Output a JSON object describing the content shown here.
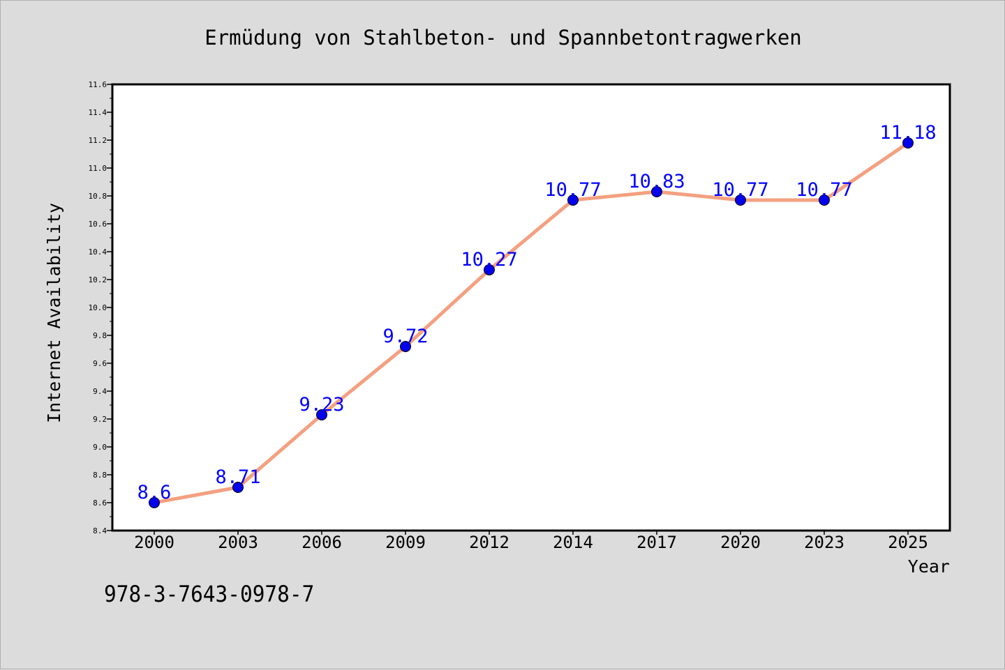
{
  "chart_data": {
    "type": "line",
    "title": "Ermüdung von Stahlbeton- und Spannbetontragwerken",
    "xlabel": "Year",
    "ylabel": "Internet Availability",
    "categories": [
      "2000",
      "2003",
      "2006",
      "2009",
      "2012",
      "2014",
      "2017",
      "2020",
      "2023",
      "2025"
    ],
    "series": [
      {
        "values": [
          8.6,
          8.71,
          9.23,
          9.72,
          10.27,
          10.77,
          10.83,
          10.77,
          10.77,
          11.18
        ],
        "labels": [
          "8.6",
          "8.71",
          "9.23",
          "9.72",
          "10.27",
          "10.77",
          "10.83",
          "10.77",
          "10.77",
          "11.18"
        ],
        "line_color": "#f4a080",
        "marker_color": "#0000ee",
        "label_color": "#0000ff"
      }
    ],
    "ylim": [
      8.4,
      11.6
    ],
    "yticks": [
      "8.4",
      "8.6",
      "8.8",
      "9.0",
      "9.2",
      "9.4",
      "9.6",
      "9.8",
      "10.0",
      "10.2",
      "10.4",
      "10.6",
      "10.8",
      "11.0",
      "11.2",
      "11.4",
      "11.6"
    ],
    "grid": false,
    "background": "#dcdcdc",
    "plot_background": "#ffffff"
  },
  "footer": {
    "isbn": "978-3-7643-0978-7"
  }
}
